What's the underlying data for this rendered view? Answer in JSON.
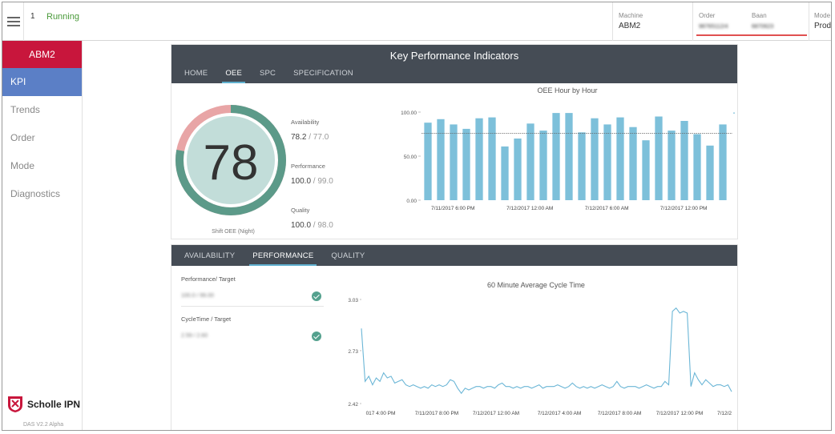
{
  "topbar": {
    "machine_number": "1",
    "status": "Running",
    "machine_label": "Machine",
    "machine_value": "ABM2",
    "order_label": "Order",
    "order_value": "98765112/4",
    "baan_label": "Baan",
    "baan_value": "6870623",
    "mode_label": "Mode",
    "mode_value": "Produ"
  },
  "sidebar": {
    "machine": "ABM2",
    "items": [
      {
        "label": "KPI"
      },
      {
        "label": "Trends"
      },
      {
        "label": "Order"
      },
      {
        "label": "Mode"
      },
      {
        "label": "Diagnostics"
      }
    ],
    "brand": "Scholle IPN",
    "version": "DAS V2.2 Alpha"
  },
  "kpi": {
    "title": "Key Performance Indicators",
    "tabs": [
      "HOME",
      "OEE",
      "SPC",
      "SPECIFICATION"
    ],
    "active_tab": "OEE",
    "gauge": {
      "value": "78",
      "label": "Shift OEE (Night)",
      "fraction": 0.78
    },
    "metrics": [
      {
        "label": "Availability",
        "value": "78.2",
        "target": " / 77.0"
      },
      {
        "label": "Performance",
        "value": "100.0",
        "target": " / 99.0"
      },
      {
        "label": "Quality",
        "value": "100.0",
        "target": " / 98.0"
      }
    ]
  },
  "oee_chart": {
    "title": "OEE Hour by Hour",
    "chart_data": {
      "type": "bar",
      "title": "OEE Hour by Hour",
      "y_ticks": [
        "0.00",
        "50.00",
        "100.00"
      ],
      "ylim": [
        0,
        100
      ],
      "target_line": 76,
      "x_tick_labels": [
        "7/11/2017 6:00 PM",
        "7/12/2017 12:00 AM",
        "7/12/2017 6:00 AM",
        "7/12/2017 12:00 PM"
      ],
      "values": [
        88,
        92,
        86,
        81,
        93,
        94,
        61,
        70,
        87,
        79,
        99,
        99,
        77,
        93,
        86,
        94,
        83,
        68,
        95,
        79,
        90,
        75,
        62,
        86
      ],
      "bar_color": "#7dc0da"
    }
  },
  "bottom": {
    "tabs": [
      "AVAILABILITY",
      "PERFORMANCE",
      "QUALITY"
    ],
    "active_tab": "PERFORMANCE",
    "perf_label": "Performance/ Target",
    "perf_value": "100.0 / 99.00",
    "cycle_label": "CycleTime / Target",
    "cycle_value": "2.59 / 2.60"
  },
  "cycle_chart": {
    "title": "60 Minute Average Cycle Time",
    "chart_data": {
      "type": "line",
      "title": "60 Minute Average Cycle Time",
      "y_ticks": [
        "2.42",
        "2.73",
        "3.03"
      ],
      "ylim": [
        2.42,
        3.03
      ],
      "x_tick_labels": [
        "017 4:00 PM",
        "7/11/2017 8:00 PM",
        "7/12/2017 12:00 AM",
        "7/12/2017 4:00 AM",
        "7/12/2017 8:00 AM",
        "7/12/2017 12:00 PM",
        "7/12/2"
      ],
      "line_color": "#6bb6d6",
      "values": [
        2.86,
        2.55,
        2.58,
        2.53,
        2.57,
        2.55,
        2.6,
        2.57,
        2.58,
        2.54,
        2.55,
        2.56,
        2.53,
        2.52,
        2.53,
        2.52,
        2.51,
        2.52,
        2.51,
        2.53,
        2.52,
        2.53,
        2.52,
        2.53,
        2.56,
        2.55,
        2.51,
        2.48,
        2.51,
        2.5,
        2.51,
        2.52,
        2.52,
        2.51,
        2.52,
        2.52,
        2.51,
        2.53,
        2.54,
        2.52,
        2.52,
        2.51,
        2.52,
        2.51,
        2.52,
        2.52,
        2.51,
        2.52,
        2.53,
        2.51,
        2.52,
        2.52,
        2.52,
        2.53,
        2.52,
        2.51,
        2.52,
        2.54,
        2.52,
        2.51,
        2.52,
        2.51,
        2.52,
        2.51,
        2.52,
        2.53,
        2.52,
        2.51,
        2.52,
        2.55,
        2.52,
        2.51,
        2.52,
        2.52,
        2.52,
        2.51,
        2.52,
        2.53,
        2.52,
        2.51,
        2.52,
        2.52,
        2.55,
        2.53,
        2.96,
        2.98,
        2.95,
        2.96,
        2.95,
        2.52,
        2.6,
        2.56,
        2.53,
        2.56,
        2.54,
        2.52,
        2.53,
        2.53,
        2.52,
        2.53,
        2.49
      ]
    }
  }
}
